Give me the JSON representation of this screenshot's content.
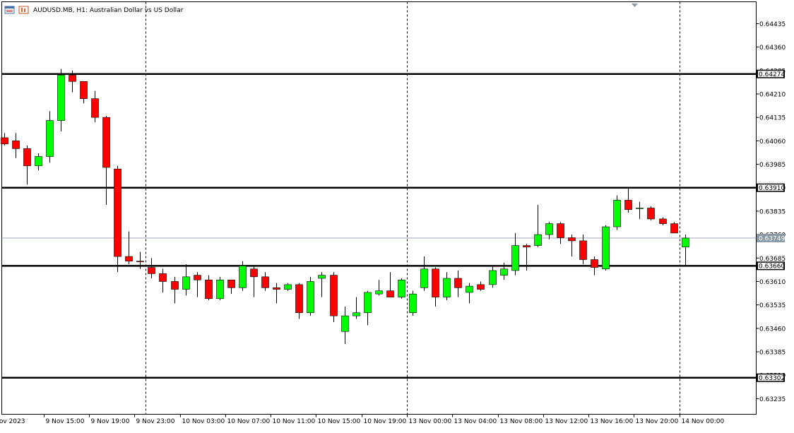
{
  "header": {
    "title": "AUDUSD.MB, H1:  Australian Dollar vs US Dollar"
  },
  "colors": {
    "bull": "#00ff00",
    "bear": "#ff0000",
    "wick": "#000000",
    "level_line": "#000000",
    "current_price_line": "#a0a8b0",
    "current_price_tag": "#8a9aa4",
    "grid_separator": "#000000"
  },
  "icons": [
    "chart-window-icon",
    "chart-properties-icon"
  ],
  "chart_data": {
    "type": "candlestick",
    "symbol": "AUDUSD.MB",
    "timeframe": "H1",
    "description": "Australian Dollar vs US Dollar",
    "ylim": [
      0.63185,
      0.64505
    ],
    "yticks": [
      "0.64435",
      "0.64360",
      "0.64285",
      "0.64210",
      "0.64135",
      "0.64060",
      "0.63985",
      "0.63910",
      "0.63835",
      "0.63760",
      "0.63685",
      "0.63610",
      "0.63535",
      "0.63460",
      "0.63385",
      "0.63310",
      "0.63235"
    ],
    "xticks": [
      {
        "label": "9 Nov 2023",
        "index": -1.5
      },
      {
        "label": "9 Nov 15:00",
        "index": 3.5
      },
      {
        "label": "9 Nov 19:00",
        "index": 7.5
      },
      {
        "label": "9 Nov 23:00",
        "index": 11.5
      },
      {
        "label": "10 Nov 03:00",
        "index": 15.5
      },
      {
        "label": "10 Nov 07:00",
        "index": 19.5
      },
      {
        "label": "10 Nov 11:00",
        "index": 23.5
      },
      {
        "label": "10 Nov 15:00",
        "index": 27.5
      },
      {
        "label": "10 Nov 19:00",
        "index": 31.5
      },
      {
        "label": "13 Nov 00:00",
        "index": 35.5
      },
      {
        "label": "13 Nov 04:00",
        "index": 39.5
      },
      {
        "label": "13 Nov 08:00",
        "index": 43.5
      },
      {
        "label": "13 Nov 12:00",
        "index": 47.5
      },
      {
        "label": "13 Nov 16:00",
        "index": 51.5
      },
      {
        "label": "13 Nov 20:00",
        "index": 55.5
      },
      {
        "label": "14 Nov 00:00",
        "index": 59.5
      }
    ],
    "day_separators": [
      12.5,
      35.5,
      59.5
    ],
    "horizontal_levels": [
      {
        "price": 0.64274,
        "label": "0.64274"
      },
      {
        "price": 0.6391,
        "label": "0.63910"
      },
      {
        "price": 0.6366,
        "label": "0.63660"
      },
      {
        "price": 0.63302,
        "label": "0.63302"
      }
    ],
    "current_price": {
      "price": 0.63749,
      "label": "0.63749"
    },
    "candles": [
      {
        "o": 0.6407,
        "h": 0.64085,
        "l": 0.64045,
        "c": 0.6405
      },
      {
        "o": 0.6406,
        "h": 0.64085,
        "l": 0.64005,
        "c": 0.64035
      },
      {
        "o": 0.64035,
        "h": 0.64045,
        "l": 0.6392,
        "c": 0.6398
      },
      {
        "o": 0.6398,
        "h": 0.6402,
        "l": 0.63965,
        "c": 0.6401
      },
      {
        "o": 0.6401,
        "h": 0.64155,
        "l": 0.6399,
        "c": 0.64125
      },
      {
        "o": 0.64125,
        "h": 0.6429,
        "l": 0.6409,
        "c": 0.6427
      },
      {
        "o": 0.6427,
        "h": 0.64285,
        "l": 0.64215,
        "c": 0.6425
      },
      {
        "o": 0.6425,
        "h": 0.6425,
        "l": 0.6418,
        "c": 0.64195
      },
      {
        "o": 0.64195,
        "h": 0.6422,
        "l": 0.6412,
        "c": 0.64135
      },
      {
        "o": 0.64135,
        "h": 0.6414,
        "l": 0.63855,
        "c": 0.63975
      },
      {
        "o": 0.6397,
        "h": 0.6398,
        "l": 0.6364,
        "c": 0.6369
      },
      {
        "o": 0.6369,
        "h": 0.6377,
        "l": 0.63665,
        "c": 0.63675
      },
      {
        "o": 0.63675,
        "h": 0.63705,
        "l": 0.6365,
        "c": 0.63673
      },
      {
        "o": 0.63655,
        "h": 0.63685,
        "l": 0.6362,
        "c": 0.63635
      },
      {
        "o": 0.63635,
        "h": 0.6365,
        "l": 0.63575,
        "c": 0.6361
      },
      {
        "o": 0.6361,
        "h": 0.63625,
        "l": 0.6354,
        "c": 0.63585
      },
      {
        "o": 0.63585,
        "h": 0.63665,
        "l": 0.63565,
        "c": 0.63625
      },
      {
        "o": 0.6363,
        "h": 0.6364,
        "l": 0.6356,
        "c": 0.63615
      },
      {
        "o": 0.63615,
        "h": 0.6363,
        "l": 0.6355,
        "c": 0.63555
      },
      {
        "o": 0.63555,
        "h": 0.63625,
        "l": 0.6355,
        "c": 0.63615
      },
      {
        "o": 0.63615,
        "h": 0.63615,
        "l": 0.6357,
        "c": 0.6359
      },
      {
        "o": 0.6359,
        "h": 0.63675,
        "l": 0.6358,
        "c": 0.6366
      },
      {
        "o": 0.6365,
        "h": 0.6366,
        "l": 0.6356,
        "c": 0.63625
      },
      {
        "o": 0.63625,
        "h": 0.6364,
        "l": 0.6358,
        "c": 0.6359
      },
      {
        "o": 0.6359,
        "h": 0.63605,
        "l": 0.6354,
        "c": 0.63585
      },
      {
        "o": 0.63585,
        "h": 0.63605,
        "l": 0.6358,
        "c": 0.636
      },
      {
        "o": 0.636,
        "h": 0.63605,
        "l": 0.6349,
        "c": 0.6351
      },
      {
        "o": 0.6351,
        "h": 0.63625,
        "l": 0.635,
        "c": 0.6361
      },
      {
        "o": 0.6362,
        "h": 0.6364,
        "l": 0.6356,
        "c": 0.6363
      },
      {
        "o": 0.6363,
        "h": 0.6364,
        "l": 0.6348,
        "c": 0.635
      },
      {
        "o": 0.6345,
        "h": 0.6353,
        "l": 0.6341,
        "c": 0.635
      },
      {
        "o": 0.635,
        "h": 0.6356,
        "l": 0.6349,
        "c": 0.6351
      },
      {
        "o": 0.6351,
        "h": 0.6358,
        "l": 0.6347,
        "c": 0.63575
      },
      {
        "o": 0.6357,
        "h": 0.63615,
        "l": 0.63565,
        "c": 0.6358
      },
      {
        "o": 0.6358,
        "h": 0.6364,
        "l": 0.63565,
        "c": 0.6356
      },
      {
        "o": 0.6356,
        "h": 0.6362,
        "l": 0.63555,
        "c": 0.63615
      },
      {
        "o": 0.6351,
        "h": 0.6358,
        "l": 0.635,
        "c": 0.6357
      },
      {
        "o": 0.6359,
        "h": 0.6369,
        "l": 0.6358,
        "c": 0.6365
      },
      {
        "o": 0.6365,
        "h": 0.63655,
        "l": 0.6353,
        "c": 0.6356
      },
      {
        "o": 0.6356,
        "h": 0.6364,
        "l": 0.6355,
        "c": 0.6362
      },
      {
        "o": 0.6362,
        "h": 0.63645,
        "l": 0.6356,
        "c": 0.6359
      },
      {
        "o": 0.63575,
        "h": 0.63605,
        "l": 0.6354,
        "c": 0.63595
      },
      {
        "o": 0.636,
        "h": 0.6361,
        "l": 0.6358,
        "c": 0.63585
      },
      {
        "o": 0.636,
        "h": 0.6366,
        "l": 0.6359,
        "c": 0.63645
      },
      {
        "o": 0.6363,
        "h": 0.6367,
        "l": 0.63615,
        "c": 0.6365
      },
      {
        "o": 0.63645,
        "h": 0.63765,
        "l": 0.6363,
        "c": 0.63725
      },
      {
        "o": 0.63725,
        "h": 0.6373,
        "l": 0.63645,
        "c": 0.6372
      },
      {
        "o": 0.63725,
        "h": 0.63855,
        "l": 0.6372,
        "c": 0.6376
      },
      {
        "o": 0.6376,
        "h": 0.638,
        "l": 0.63745,
        "c": 0.63795
      },
      {
        "o": 0.63795,
        "h": 0.638,
        "l": 0.6373,
        "c": 0.6375
      },
      {
        "o": 0.6375,
        "h": 0.6376,
        "l": 0.6369,
        "c": 0.6374
      },
      {
        "o": 0.6374,
        "h": 0.6376,
        "l": 0.63665,
        "c": 0.6368
      },
      {
        "o": 0.6368,
        "h": 0.6369,
        "l": 0.6363,
        "c": 0.63655
      },
      {
        "o": 0.6365,
        "h": 0.6379,
        "l": 0.63645,
        "c": 0.63785
      },
      {
        "o": 0.63785,
        "h": 0.63885,
        "l": 0.63775,
        "c": 0.6387
      },
      {
        "o": 0.6387,
        "h": 0.6391,
        "l": 0.6383,
        "c": 0.6384
      },
      {
        "o": 0.63845,
        "h": 0.63865,
        "l": 0.6381,
        "c": 0.63845
      },
      {
        "o": 0.63845,
        "h": 0.6385,
        "l": 0.63805,
        "c": 0.6381
      },
      {
        "o": 0.6381,
        "h": 0.63815,
        "l": 0.6379,
        "c": 0.63795
      },
      {
        "o": 0.63795,
        "h": 0.638,
        "l": 0.63765,
        "c": 0.63765
      },
      {
        "o": 0.6372,
        "h": 0.6376,
        "l": 0.6366,
        "c": 0.63749
      }
    ]
  }
}
